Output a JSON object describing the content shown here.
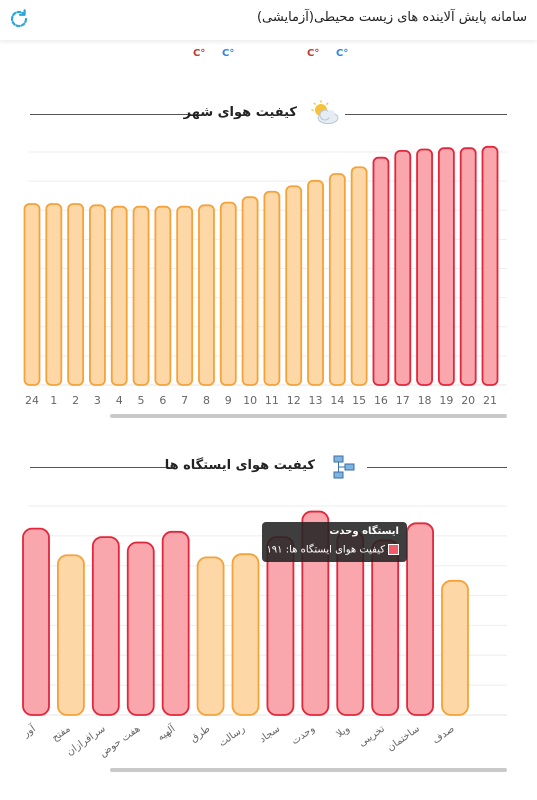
{
  "header": {
    "title": "سامانه پایش آلاینده های زیست محیطی(آزمایشی)",
    "refresh_icon": "refresh-icon"
  },
  "temps": [
    {
      "text": "C°",
      "color": "#c0392b"
    },
    {
      "text": "C°",
      "color": "#2e86de"
    },
    {
      "text": "C°",
      "color": "#c0392b"
    },
    {
      "text": "C°",
      "color": "#2e86de"
    }
  ],
  "city_section": {
    "title": "کیفیت هوای شهر",
    "icon": "partly-cloudy-icon"
  },
  "stations_section": {
    "title": "کیفیت هوای ایستگاه ها",
    "icon": "network-stations-icon"
  },
  "tooltip": {
    "title": "ایستگاه وحدت",
    "label": "کیفیت هوای ایستگاه ها: ۱۹۱"
  },
  "colors": {
    "orange_fill": "#fdd7a6",
    "orange_stroke": "#f4a23a",
    "red_fill": "#f9a6ad",
    "red_stroke": "#e3263b"
  },
  "chart_data": [
    {
      "type": "bar",
      "categories": [
        "24",
        "1",
        "2",
        "3",
        "4",
        "5",
        "6",
        "7",
        "8",
        "9",
        "10",
        "11",
        "12",
        "13",
        "14",
        "15",
        "16",
        "17",
        "18",
        "19",
        "20",
        "21"
      ],
      "values": [
        133,
        133,
        133,
        132,
        131,
        131,
        131,
        131,
        132,
        134,
        138,
        142,
        146,
        150,
        155,
        160,
        167,
        172,
        173,
        174,
        174,
        175
      ],
      "levels": [
        "moderate",
        "moderate",
        "moderate",
        "moderate",
        "moderate",
        "moderate",
        "moderate",
        "moderate",
        "moderate",
        "moderate",
        "moderate",
        "moderate",
        "moderate",
        "moderate",
        "moderate",
        "moderate",
        "unhealthy",
        "unhealthy",
        "unhealthy",
        "unhealthy",
        "unhealthy",
        "unhealthy"
      ],
      "ylim": [
        0,
        180
      ]
    },
    {
      "type": "bar",
      "categories": [
        "آور",
        "مفتح",
        "سرافرازان",
        "هفت حوض",
        "آلهیه",
        "طرق",
        "رسالت",
        "سجاد",
        "وحدت",
        "ویلا",
        "تخریبی",
        "ساختمان",
        "صدف"
      ],
      "values": [
        175,
        150,
        167,
        162,
        172,
        148,
        151,
        167,
        191,
        172,
        164,
        180,
        126
      ],
      "levels": [
        "unhealthy",
        "moderate",
        "unhealthy",
        "unhealthy",
        "unhealthy",
        "moderate",
        "moderate",
        "unhealthy",
        "unhealthy",
        "unhealthy",
        "unhealthy",
        "unhealthy",
        "moderate"
      ],
      "ylim": [
        0,
        200
      ]
    }
  ]
}
